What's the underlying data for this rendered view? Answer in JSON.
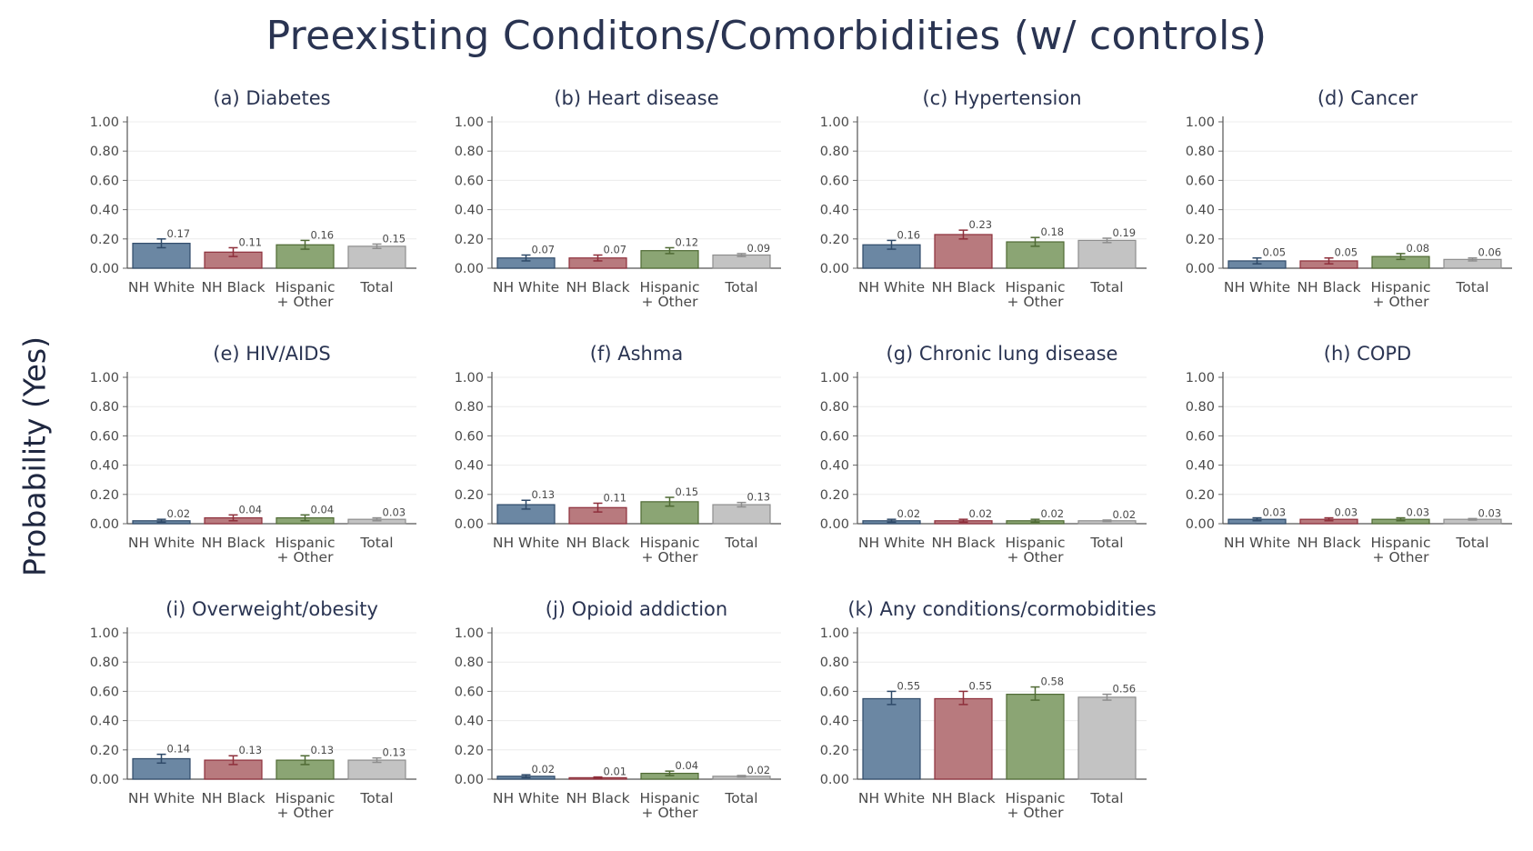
{
  "title": "Preexisting Conditons/Comorbidities (w/ controls)",
  "ylabel": "Probability (Yes)",
  "colors": {
    "NH White": "#6b87a3",
    "NH Black": "#b87a7e",
    "Hispanic + Other": "#8ba574",
    "Total": "#c3c3c3",
    "NH White_err": "#2f4a69",
    "NH Black_err": "#8e2f3b",
    "Hispanic + Other_err": "#4f6a34",
    "Total_err": "#8e8e8e"
  },
  "chart_data": [
    {
      "type": "bar",
      "title": "(a) Diabetes",
      "categories": [
        "NH White",
        "NH Black",
        "Hispanic + Other",
        "Total"
      ],
      "values": [
        0.17,
        0.11,
        0.16,
        0.15
      ],
      "labels": [
        "0.17",
        "0.11",
        "0.16",
        "0.15"
      ],
      "err_low": [
        0.14,
        0.08,
        0.13,
        0.135
      ],
      "err_high": [
        0.2,
        0.14,
        0.19,
        0.165
      ],
      "yticks": [
        "0.00",
        "0.20",
        "0.40",
        "0.60",
        "0.80",
        "1.00"
      ],
      "ylim": [
        0,
        1
      ]
    },
    {
      "type": "bar",
      "title": "(b) Heart disease",
      "categories": [
        "NH White",
        "NH Black",
        "Hispanic + Other",
        "Total"
      ],
      "values": [
        0.07,
        0.07,
        0.12,
        0.09
      ],
      "labels": [
        "0.07",
        "0.07",
        "0.12",
        "0.09"
      ],
      "err_low": [
        0.05,
        0.05,
        0.1,
        0.08
      ],
      "err_high": [
        0.09,
        0.09,
        0.14,
        0.1
      ],
      "yticks": [
        "0.00",
        "0.20",
        "0.40",
        "0.60",
        "0.80",
        "1.00"
      ],
      "ylim": [
        0,
        1
      ]
    },
    {
      "type": "bar",
      "title": "(c) Hypertension",
      "categories": [
        "NH White",
        "NH Black",
        "Hispanic + Other",
        "Total"
      ],
      "values": [
        0.16,
        0.23,
        0.18,
        0.19
      ],
      "labels": [
        "0.16",
        "0.23",
        "0.18",
        "0.19"
      ],
      "err_low": [
        0.13,
        0.2,
        0.15,
        0.175
      ],
      "err_high": [
        0.19,
        0.26,
        0.21,
        0.205
      ],
      "yticks": [
        "0.00",
        "0.20",
        "0.40",
        "0.60",
        "0.80",
        "1.00"
      ],
      "ylim": [
        0,
        1
      ]
    },
    {
      "type": "bar",
      "title": "(d) Cancer",
      "categories": [
        "NH White",
        "NH Black",
        "Hispanic + Other",
        "Total"
      ],
      "values": [
        0.05,
        0.05,
        0.08,
        0.06
      ],
      "labels": [
        "0.05",
        "0.05",
        "0.08",
        "0.06"
      ],
      "err_low": [
        0.03,
        0.03,
        0.06,
        0.05
      ],
      "err_high": [
        0.07,
        0.07,
        0.1,
        0.07
      ],
      "yticks": [
        "0.00",
        "0.20",
        "0.40",
        "0.60",
        "0.80",
        "1.00"
      ],
      "ylim": [
        0,
        1
      ]
    },
    {
      "type": "bar",
      "title": "(e) HIV/AIDS",
      "categories": [
        "NH White",
        "NH Black",
        "Hispanic + Other",
        "Total"
      ],
      "values": [
        0.02,
        0.04,
        0.04,
        0.03
      ],
      "labels": [
        "0.02",
        "0.04",
        "0.04",
        "0.03"
      ],
      "err_low": [
        0.01,
        0.02,
        0.02,
        0.02
      ],
      "err_high": [
        0.03,
        0.06,
        0.06,
        0.04
      ],
      "yticks": [
        "0.00",
        "0.20",
        "0.40",
        "0.60",
        "0.80",
        "1.00"
      ],
      "ylim": [
        0,
        1
      ]
    },
    {
      "type": "bar",
      "title": "(f) Ashma",
      "categories": [
        "NH White",
        "NH Black",
        "Hispanic + Other",
        "Total"
      ],
      "values": [
        0.13,
        0.11,
        0.15,
        0.13
      ],
      "labels": [
        "0.13",
        "0.11",
        "0.15",
        "0.13"
      ],
      "err_low": [
        0.1,
        0.08,
        0.12,
        0.115
      ],
      "err_high": [
        0.16,
        0.14,
        0.18,
        0.145
      ],
      "yticks": [
        "0.00",
        "0.20",
        "0.40",
        "0.60",
        "0.80",
        "1.00"
      ],
      "ylim": [
        0,
        1
      ]
    },
    {
      "type": "bar",
      "title": "(g) Chronic lung disease",
      "categories": [
        "NH White",
        "NH Black",
        "Hispanic + Other",
        "Total"
      ],
      "values": [
        0.02,
        0.02,
        0.02,
        0.02
      ],
      "labels": [
        "0.02",
        "0.02",
        "0.02",
        "0.02"
      ],
      "err_low": [
        0.01,
        0.01,
        0.01,
        0.015
      ],
      "err_high": [
        0.03,
        0.03,
        0.03,
        0.025
      ],
      "yticks": [
        "0.00",
        "0.20",
        "0.40",
        "0.60",
        "0.80",
        "1.00"
      ],
      "ylim": [
        0,
        1
      ]
    },
    {
      "type": "bar",
      "title": "(h) COPD",
      "categories": [
        "NH White",
        "NH Black",
        "Hispanic + Other",
        "Total"
      ],
      "values": [
        0.03,
        0.03,
        0.03,
        0.03
      ],
      "labels": [
        "0.03",
        "0.03",
        "0.03",
        "0.03"
      ],
      "err_low": [
        0.02,
        0.02,
        0.02,
        0.025
      ],
      "err_high": [
        0.04,
        0.04,
        0.04,
        0.035
      ],
      "yticks": [
        "0.00",
        "0.20",
        "0.40",
        "0.60",
        "0.80",
        "1.00"
      ],
      "ylim": [
        0,
        1
      ]
    },
    {
      "type": "bar",
      "title": "(i) Overweight/obesity",
      "categories": [
        "NH White",
        "NH Black",
        "Hispanic + Other",
        "Total"
      ],
      "values": [
        0.14,
        0.13,
        0.13,
        0.13
      ],
      "labels": [
        "0.14",
        "0.13",
        "0.13",
        "0.13"
      ],
      "err_low": [
        0.11,
        0.1,
        0.1,
        0.115
      ],
      "err_high": [
        0.17,
        0.16,
        0.16,
        0.145
      ],
      "yticks": [
        "0.00",
        "0.20",
        "0.40",
        "0.60",
        "0.80",
        "1.00"
      ],
      "ylim": [
        0,
        1
      ]
    },
    {
      "type": "bar",
      "title": "(j) Opioid addiction",
      "categories": [
        "NH White",
        "NH Black",
        "Hispanic + Other",
        "Total"
      ],
      "values": [
        0.02,
        0.01,
        0.04,
        0.02
      ],
      "labels": [
        "0.02",
        "0.01",
        "0.04",
        "0.02"
      ],
      "err_low": [
        0.01,
        0.005,
        0.025,
        0.015
      ],
      "err_high": [
        0.03,
        0.015,
        0.055,
        0.025
      ],
      "yticks": [
        "0.00",
        "0.20",
        "0.40",
        "0.60",
        "0.80",
        "1.00"
      ],
      "ylim": [
        0,
        1
      ]
    },
    {
      "type": "bar",
      "title": "(k) Any conditions/cormobidities",
      "categories": [
        "NH White",
        "NH Black",
        "Hispanic + Other",
        "Total"
      ],
      "values": [
        0.55,
        0.55,
        0.58,
        0.56
      ],
      "labels": [
        "0.55",
        "0.55",
        "0.58",
        "0.56"
      ],
      "err_low": [
        0.51,
        0.51,
        0.54,
        0.54
      ],
      "err_high": [
        0.6,
        0.6,
        0.63,
        0.58
      ],
      "yticks": [
        "0.00",
        "0.20",
        "0.40",
        "0.60",
        "0.80",
        "1.00"
      ],
      "ylim": [
        0,
        1
      ]
    }
  ]
}
